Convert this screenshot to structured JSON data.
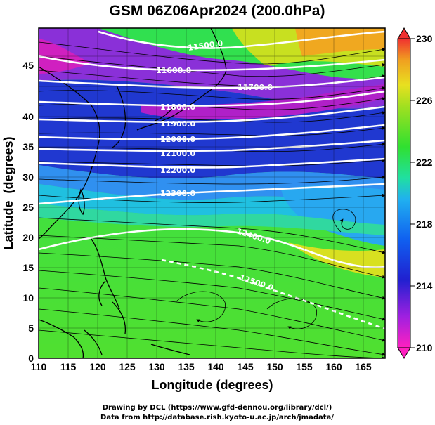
{
  "title": "GSM 06Z06Apr2024 (200.0hPa)",
  "x_axis": {
    "label": "Longitude (degrees)",
    "ticks": [
      "110",
      "115",
      "120",
      "125",
      "130",
      "135",
      "140",
      "145",
      "150",
      "155",
      "160",
      "165"
    ]
  },
  "y_axis": {
    "label": "Latitude  (degrees)",
    "ticks": [
      "0",
      "5",
      "10",
      "15",
      "20",
      "25",
      "30",
      "35",
      "40",
      "45"
    ]
  },
  "colorbar": {
    "ticks": [
      "210",
      "214",
      "218",
      "222",
      "226",
      "230"
    ]
  },
  "contour_labels": [
    {
      "text": "11500.0"
    },
    {
      "text": "11600.0"
    },
    {
      "text": "11700.0"
    },
    {
      "text": "11800.0"
    },
    {
      "text": "11900.0"
    },
    {
      "text": "12000.0"
    },
    {
      "text": "12100.0"
    },
    {
      "text": "12200.0"
    },
    {
      "text": "12300.0"
    },
    {
      "text": "12400.0"
    },
    {
      "text": "12500.0"
    }
  ],
  "credits": {
    "line1": "Drawing by DCL (https://www.gfd-dennou.org/library/dcl/)",
    "line2": "Data from http://database.rish.kyoto-u.ac.jp/arch/jmadata/"
  },
  "colors": {
    "magenta": "#e020c0",
    "purple": "#7a30d0",
    "blue": "#1030c8",
    "cyan": "#20a8f0",
    "green": "#30e020",
    "yellow": "#e8e020",
    "orange": "#f0a020",
    "red": "#e83030"
  }
}
